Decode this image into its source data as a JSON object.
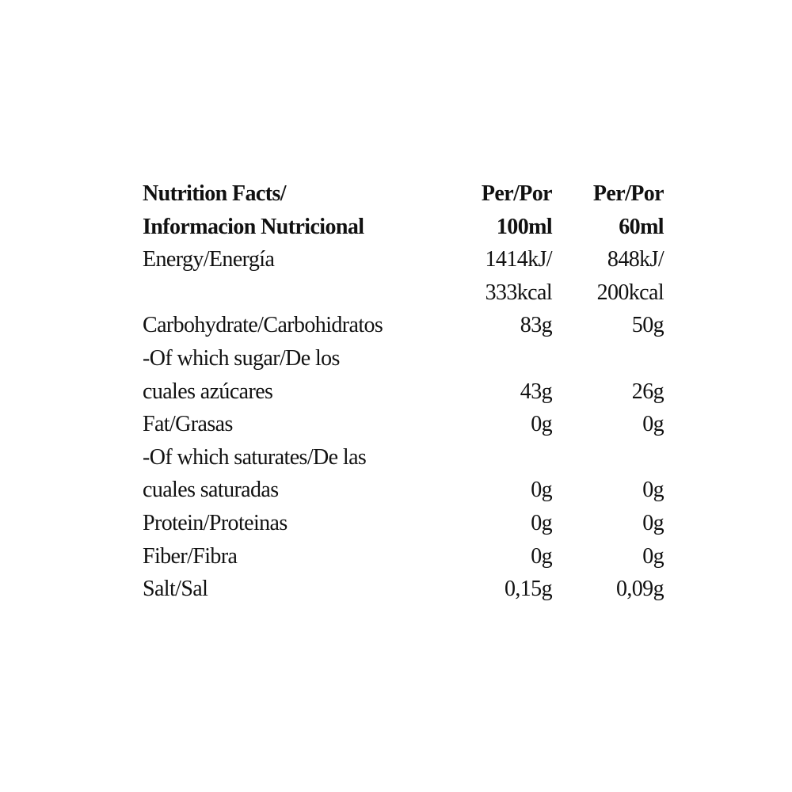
{
  "header": [
    {
      "label": "Nutrition Facts/",
      "col1": "Per/Por",
      "col2": "Per/Por"
    },
    {
      "label": "Informacion Nutricional",
      "col1": "100ml",
      "col2": "60ml"
    }
  ],
  "rows": [
    {
      "label": "Energy/Energía",
      "col1": "1414kJ/",
      "col2": "848kJ/"
    },
    {
      "label": "",
      "col1": "333kcal",
      "col2": "200kcal"
    },
    {
      "label": "Carbohydrate/Carbohidratos",
      "col1": "83g",
      "col2": "50g"
    },
    {
      "label": "-Of which sugar/De los",
      "col1": "",
      "col2": ""
    },
    {
      "label": "cuales azúcares",
      "col1": "43g",
      "col2": "26g"
    },
    {
      "label": "Fat/Grasas",
      "col1": "0g",
      "col2": "0g"
    },
    {
      "label": "-Of which saturates/De las",
      "col1": "",
      "col2": ""
    },
    {
      "label": "cuales saturadas",
      "col1": "0g",
      "col2": "0g"
    },
    {
      "label": "Protein/Proteinas",
      "col1": "0g",
      "col2": "0g"
    },
    {
      "label": "Fiber/Fibra",
      "col1": "0g",
      "col2": "0g"
    },
    {
      "label": "Salt/Sal",
      "col1": "0,15g",
      "col2": "0,09g"
    }
  ]
}
